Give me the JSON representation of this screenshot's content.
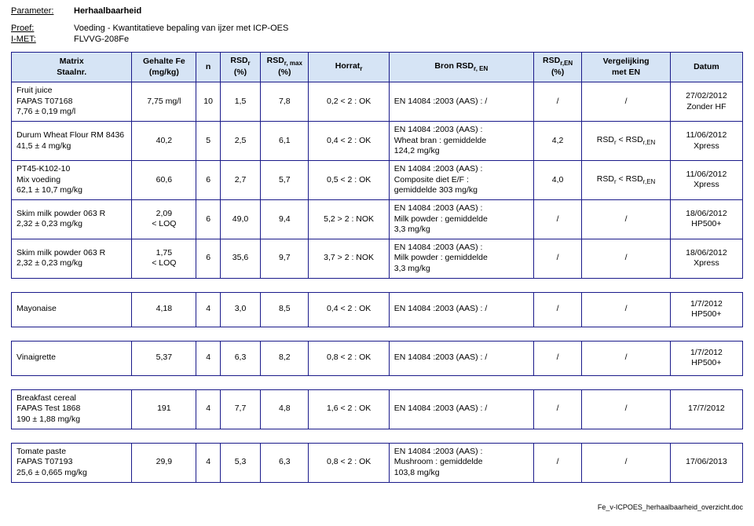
{
  "header": {
    "param_label": "Parameter:",
    "param_value": "Herhaalbaarheid",
    "proef_label": "Proef:",
    "proef_value": "Voeding - Kwantitatieve bepaling van ijzer met ICP-OES",
    "imet_label": "I-MET:",
    "imet_value": "FLVVG-208Fe"
  },
  "columns": {
    "matrix": "Matrix\nStaalnr.",
    "gehalte": "Gehalte Fe\n(mg/kg)",
    "n": "n",
    "rsd": "RSDr\n(%)",
    "rsdmax": "RSDr, max\n(%)",
    "horrat": "Horratr",
    "bron": "Bron RSDr, EN",
    "rsden": "RSDr,EN\n(%)",
    "vergel": "Vergelijking\nmet EN",
    "datum": "Datum"
  },
  "rows": [
    {
      "matrix": "Fruit juice\nFAPAS T07168\n7,76 ± 0,19 mg/l",
      "gehalte": "7,75 mg/l",
      "n": "10",
      "rsd": "1,5",
      "rsdmax": "7,8",
      "horrat": "0,2 < 2 : OK",
      "bron": "EN 14084 :2003 (AAS) : /",
      "rsden": "/",
      "vergel": "/",
      "datum": "27/02/2012\nZonder HF"
    },
    {
      "matrix": "Durum Wheat Flour RM 8436\n41,5 ± 4 mg/kg",
      "gehalte": "40,2",
      "n": "5",
      "rsd": "2,5",
      "rsdmax": "6,1",
      "horrat": "0,4 < 2 : OK",
      "bron": "EN 14084 :2003 (AAS) :\nWheat bran : gemiddelde\n124,2 mg/kg",
      "rsden": "4,2",
      "vergel": "RSDr < RSDr,EN",
      "datum": "11/06/2012\nXpress"
    },
    {
      "matrix": "PT45-K102-10\nMix voeding\n62,1 ± 10,7 mg/kg",
      "gehalte": "60,6",
      "n": "6",
      "rsd": "2,7",
      "rsdmax": "5,7",
      "horrat": "0,5 < 2 : OK",
      "bron": "EN 14084 :2003 (AAS) :\nComposite diet E/F :\ngemiddelde  303 mg/kg",
      "rsden": "4,0",
      "vergel": "RSDr < RSDr,EN",
      "datum": "11/06/2012\nXpress"
    },
    {
      "matrix": "Skim milk powder 063 R\n2,32 ± 0,23 mg/kg",
      "gehalte": "2,09\n< LOQ",
      "n": "6",
      "rsd": "49,0",
      "rsdmax": "9,4",
      "horrat": "5,2 > 2 : NOK",
      "bron": "EN 14084 :2003 (AAS) :\nMilk powder : gemiddelde\n3,3 mg/kg",
      "rsden": "/",
      "vergel": "/",
      "datum": "18/06/2012\nHP500+"
    },
    {
      "matrix": "Skim milk powder 063 R\n2,32 ± 0,23 mg/kg",
      "gehalte": "1,75\n< LOQ",
      "n": "6",
      "rsd": "35,6",
      "rsdmax": "9,7",
      "horrat": "3,7 > 2 : NOK",
      "bron": "EN 14084 :2003 (AAS) :\nMilk powder : gemiddelde\n3,3 mg/kg",
      "rsden": "/",
      "vergel": "/",
      "datum": "18/06/2012\nXpress"
    },
    {
      "matrix": "Mayonaise",
      "gehalte": "4,18",
      "n": "4",
      "rsd": "3,0",
      "rsdmax": "8,5",
      "horrat": "0,4 < 2 : OK",
      "bron": "EN 14084 :2003 (AAS) : /",
      "rsden": "/",
      "vergel": "/",
      "datum": "1/7/2012\nHP500+"
    },
    {
      "matrix": "Vinaigrette",
      "gehalte": "5,37",
      "n": "4",
      "rsd": "6,3",
      "rsdmax": "8,2",
      "horrat": "0,8 < 2 : OK",
      "bron": "EN 14084 :2003 (AAS) : /",
      "rsden": "/",
      "vergel": "/",
      "datum": "1/7/2012\nHP500+"
    },
    {
      "matrix": "Breakfast cereal\nFAPAS Test 1868\n190 ± 1,88 mg/kg",
      "gehalte": "191",
      "n": "4",
      "rsd": "7,7",
      "rsdmax": "4,8",
      "horrat": "1,6 < 2 : OK",
      "bron": "EN 14084 :2003 (AAS) : /",
      "rsden": "/",
      "vergel": "/",
      "datum": "17/7/2012"
    },
    {
      "matrix": "Tomate paste\nFAPAS T07193\n25,6 ± 0,665 mg/kg",
      "gehalte": "29,9",
      "n": "4",
      "rsd": "5,3",
      "rsdmax": "6,3",
      "horrat": "0,8 < 2 : OK",
      "bron": "EN 14084 :2003 (AAS) :\nMushroom : gemiddelde\n103,8 mg/kg",
      "rsden": "/",
      "vergel": "/",
      "datum": "17/06/2013"
    }
  ],
  "gaps_after": [
    4,
    5,
    6,
    7
  ],
  "footer": "Fe_v-ICPOES_herhaalbaarheid_overzicht.doc"
}
